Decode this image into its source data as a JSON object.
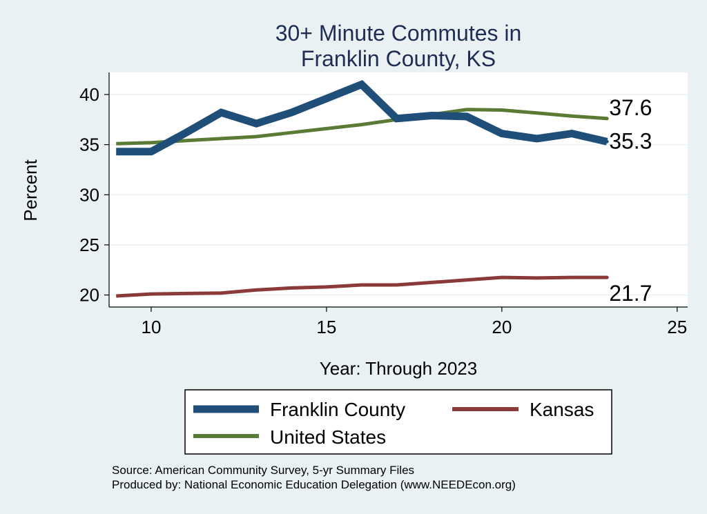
{
  "chart_data": {
    "type": "line",
    "title": [
      "30+ Minute Commutes in",
      "Franklin County, KS"
    ],
    "xlabel": "Year: Through 2023",
    "ylabel": "Percent",
    "xlim": [
      8.8,
      25.3
    ],
    "ylim": [
      18.8,
      42.2
    ],
    "xticks": [
      10,
      15,
      20,
      25
    ],
    "yticks": [
      20,
      25,
      30,
      35,
      40
    ],
    "grid": true,
    "legend_position": "bottom",
    "x": [
      9,
      10,
      11,
      12,
      13,
      14,
      15,
      16,
      17,
      18,
      19,
      20,
      21,
      22,
      23
    ],
    "series": [
      {
        "name": "Franklin County",
        "color": "#1f4e79",
        "values": [
          34.3,
          34.3,
          36.2,
          38.2,
          37.1,
          38.2,
          39.6,
          41.0,
          37.6,
          37.9,
          37.8,
          36.1,
          35.6,
          36.1,
          35.3
        ],
        "end_label": "35.3"
      },
      {
        "name": "Kansas",
        "color": "#8b3a3a",
        "values": [
          19.9,
          20.1,
          20.15,
          20.2,
          20.5,
          20.7,
          20.8,
          21.0,
          21.0,
          21.25,
          21.5,
          21.75,
          21.7,
          21.75,
          21.75
        ],
        "end_label": "21.7"
      },
      {
        "name": "United States",
        "color": "#5a7a35",
        "values": [
          35.1,
          35.2,
          35.4,
          35.6,
          35.8,
          36.2,
          36.6,
          37.0,
          37.5,
          38.0,
          38.5,
          38.45,
          38.15,
          37.85,
          37.6
        ],
        "end_label": "37.6"
      }
    ]
  },
  "source": {
    "line1": "Source: American Community Survey, 5-yr Summary Files",
    "line2": "Produced by: National Economic Education Delegation (www.NEEDEcon.org)"
  }
}
